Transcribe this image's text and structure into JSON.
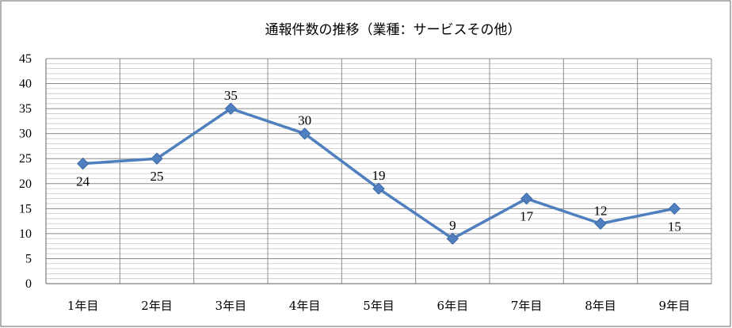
{
  "chart_data": {
    "type": "line",
    "title": "通報件数の推移（業種：サービスその他）",
    "xlabel": "",
    "ylabel": "",
    "categories": [
      "1年目",
      "2年目",
      "3年目",
      "4年目",
      "5年目",
      "6年目",
      "7年目",
      "8年目",
      "9年目"
    ],
    "series": [
      {
        "values": [
          24,
          25,
          35,
          30,
          19,
          9,
          17,
          12,
          15
        ],
        "data_labels": [
          "24",
          "25",
          "35",
          "30",
          "19",
          "9",
          "17",
          "12",
          "15"
        ],
        "label_positions": [
          "below",
          "below",
          "above",
          "above",
          "above",
          "above",
          "below",
          "above",
          "below"
        ],
        "marker": "diamond",
        "color": "#4f7fbf"
      }
    ],
    "ylim": [
      0,
      45
    ],
    "yticks": [
      0,
      5,
      10,
      15,
      20,
      25,
      30,
      35,
      40,
      45
    ],
    "minor_grid_step": 1,
    "grid": true,
    "legend": "none",
    "colors": {
      "line": "#4f7fbf",
      "grid_major": "#8c8c8c",
      "grid_minor": "#c8c8c8",
      "border": "#7f7f7f"
    }
  }
}
